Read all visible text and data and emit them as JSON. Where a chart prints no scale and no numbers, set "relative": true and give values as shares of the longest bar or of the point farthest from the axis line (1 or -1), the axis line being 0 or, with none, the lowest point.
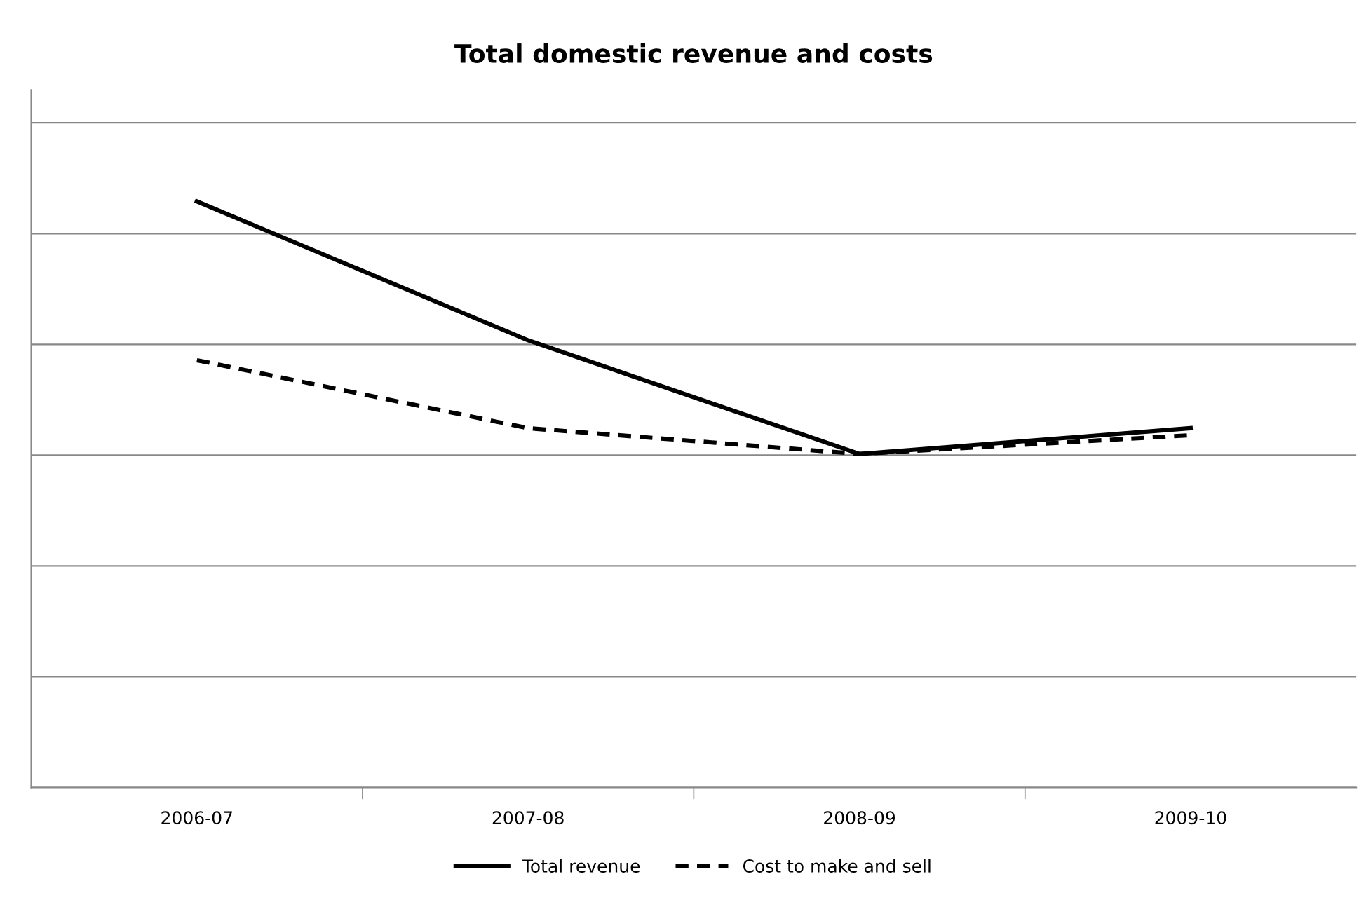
{
  "chart_data": {
    "type": "line",
    "title": "Total domestic revenue and costs",
    "relative": true,
    "categories": [
      "2006-07",
      "2007-08",
      "2008-09",
      "2009-10"
    ],
    "series": [
      {
        "name": "Total revenue",
        "color": "#000000",
        "values": [
          1,
          0.763,
          0.569,
          0.613
        ],
        "line_style": "solid"
      },
      {
        "name": "Cost to make and sell",
        "color": "#000000",
        "values": [
          0.729,
          0.613,
          0.569,
          0.601
        ],
        "line_style": "dashed"
      }
    ],
    "grid": "y",
    "legend": "bottom",
    "marker": "none"
  }
}
